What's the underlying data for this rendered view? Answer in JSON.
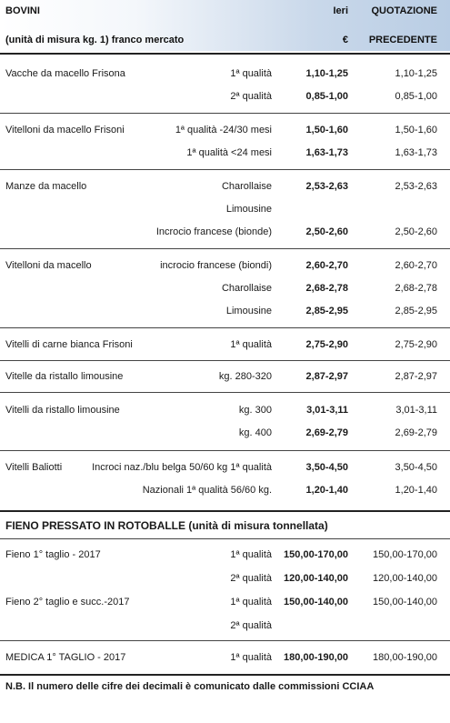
{
  "header": {
    "title": "BOVINI",
    "unit": "(unità di misura kg. 1) franco mercato",
    "col_ieri": "Ieri",
    "col_euro": "€",
    "col_quotazione": "QUOTAZIONE",
    "col_precedente": "PRECEDENTE"
  },
  "bovini": [
    {
      "name": "Vacche da macello Frisona",
      "rows": [
        {
          "qual": "1ª qualità",
          "ieri": "1,10-1,25",
          "prec": "1,10-1,25"
        },
        {
          "qual": "2ª qualità",
          "ieri": "0,85-1,00",
          "prec": "0,85-1,00"
        }
      ]
    },
    {
      "name": "Vitelloni da macello Frisoni",
      "rows": [
        {
          "qual": "1ª qualità -24/30 mesi",
          "ieri": "1,50-1,60",
          "prec": "1,50-1,60"
        },
        {
          "qual": "1ª qualità <24 mesi",
          "ieri": "1,63-1,73",
          "prec": "1,63-1,73"
        }
      ]
    },
    {
      "name": "Manze da macello",
      "rows": [
        {
          "qual": "Charollaise",
          "ieri": "2,53-2,63",
          "prec": "2,53-2,63"
        },
        {
          "qual": "Limousine",
          "ieri": "",
          "prec": ""
        },
        {
          "qual": "Incrocio francese (bionde)",
          "ieri": "2,50-2,60",
          "prec": "2,50-2,60"
        }
      ]
    },
    {
      "name": "Vitelloni da macello",
      "rows": [
        {
          "qual": "incrocio francese (biondi)",
          "ieri": "2,60-2,70",
          "prec": "2,60-2,70"
        },
        {
          "qual": "Charollaise",
          "ieri": "2,68-2,78",
          "prec": "2,68-2,78"
        },
        {
          "qual": "Limousine",
          "ieri": "2,85-2,95",
          "prec": "2,85-2,95"
        }
      ]
    },
    {
      "name": "Vitelli di carne bianca Frisoni",
      "rows": [
        {
          "qual": "1ª qualità",
          "ieri": "2,75-2,90",
          "prec": "2,75-2,90"
        }
      ]
    },
    {
      "name": "Vitelle da ristallo limousine",
      "rows": [
        {
          "qual": "kg. 280-320",
          "ieri": "2,87-2,97",
          "prec": "2,87-2,97"
        }
      ]
    },
    {
      "name": "Vitelli da ristallo limousine",
      "rows": [
        {
          "qual": "kg. 300",
          "ieri": "3,01-3,11",
          "prec": "3,01-3,11"
        },
        {
          "qual": "kg. 400",
          "ieri": "2,69-2,79",
          "prec": "2,69-2,79"
        }
      ]
    },
    {
      "name": "Vitelli Baliotti",
      "rows": [
        {
          "qual": "Incroci naz./blu belga 50/60 kg 1ª qualità",
          "ieri": "3,50-4,50",
          "prec": "3,50-4,50"
        },
        {
          "qual": "Nazionali 1ª qualità 56/60 kg.",
          "ieri": "1,20-1,40",
          "prec": "1,20-1,40"
        }
      ]
    }
  ],
  "fieno": {
    "title": "FIENO PRESSATO IN ROTOBALLE (unità di misura tonnellata)",
    "groups": [
      {
        "name": "Fieno 1° taglio - 2017",
        "rows": [
          {
            "qual": "1ª qualità",
            "ieri": "150,00-170,00",
            "prec": "150,00-170,00"
          },
          {
            "qual": "2ª qualità",
            "ieri": "120,00-140,00",
            "prec": "120,00-140,00"
          }
        ]
      },
      {
        "name": "Fieno 2° taglio e succ.-2017",
        "rows": [
          {
            "qual": "1ª qualità",
            "ieri": "150,00-140,00",
            "prec": "150,00-140,00"
          },
          {
            "qual": "2ª qualità",
            "ieri": "",
            "prec": ""
          }
        ]
      },
      {
        "name": "MEDICA 1° TAGLIO - 2017",
        "rows": [
          {
            "qual": "1ª qualità",
            "ieri": "180,00-190,00",
            "prec": "180,00-190,00"
          }
        ]
      }
    ]
  },
  "note": "N.B. Il numero delle cifre dei decimali è comunicato dalle commissioni CCIAA"
}
